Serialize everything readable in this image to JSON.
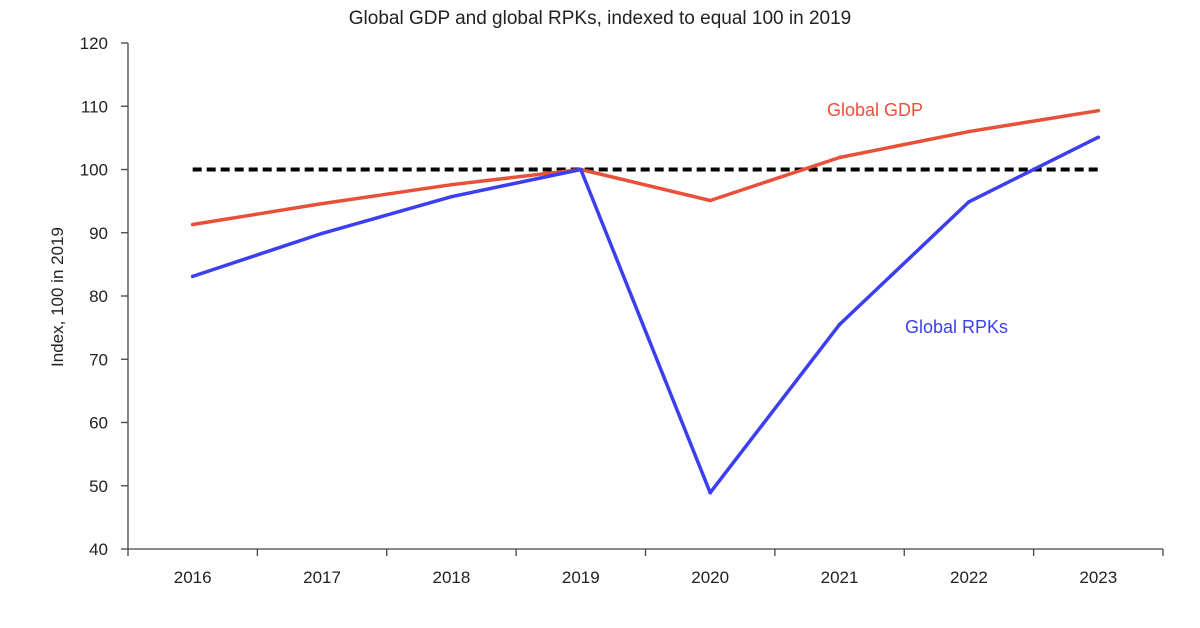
{
  "chart_data": {
    "type": "line",
    "title": "Global GDP and global RPKs, indexed to equal 100 in 2019",
    "xlabel": "",
    "ylabel": "Index, 100 in 2019",
    "categories": [
      "2016",
      "2017",
      "2018",
      "2019",
      "2020",
      "2021",
      "2022",
      "2023"
    ],
    "ylim": [
      40,
      120
    ],
    "yticks": [
      40,
      50,
      60,
      70,
      80,
      90,
      100,
      110,
      120
    ],
    "grid": false,
    "reference_line": {
      "value": 100,
      "style": "dashed",
      "color": "#000000"
    },
    "series": [
      {
        "name": "Global GDP",
        "color": "#e8503a",
        "values": [
          91.3,
          94.6,
          97.6,
          100,
          95.1,
          101.9,
          106.0,
          109.3
        ]
      },
      {
        "name": "Global RPKs",
        "color": "#3b3ff0",
        "values": [
          83.1,
          89.9,
          95.7,
          100,
          48.9,
          75.5,
          94.9,
          105.1
        ]
      }
    ]
  }
}
